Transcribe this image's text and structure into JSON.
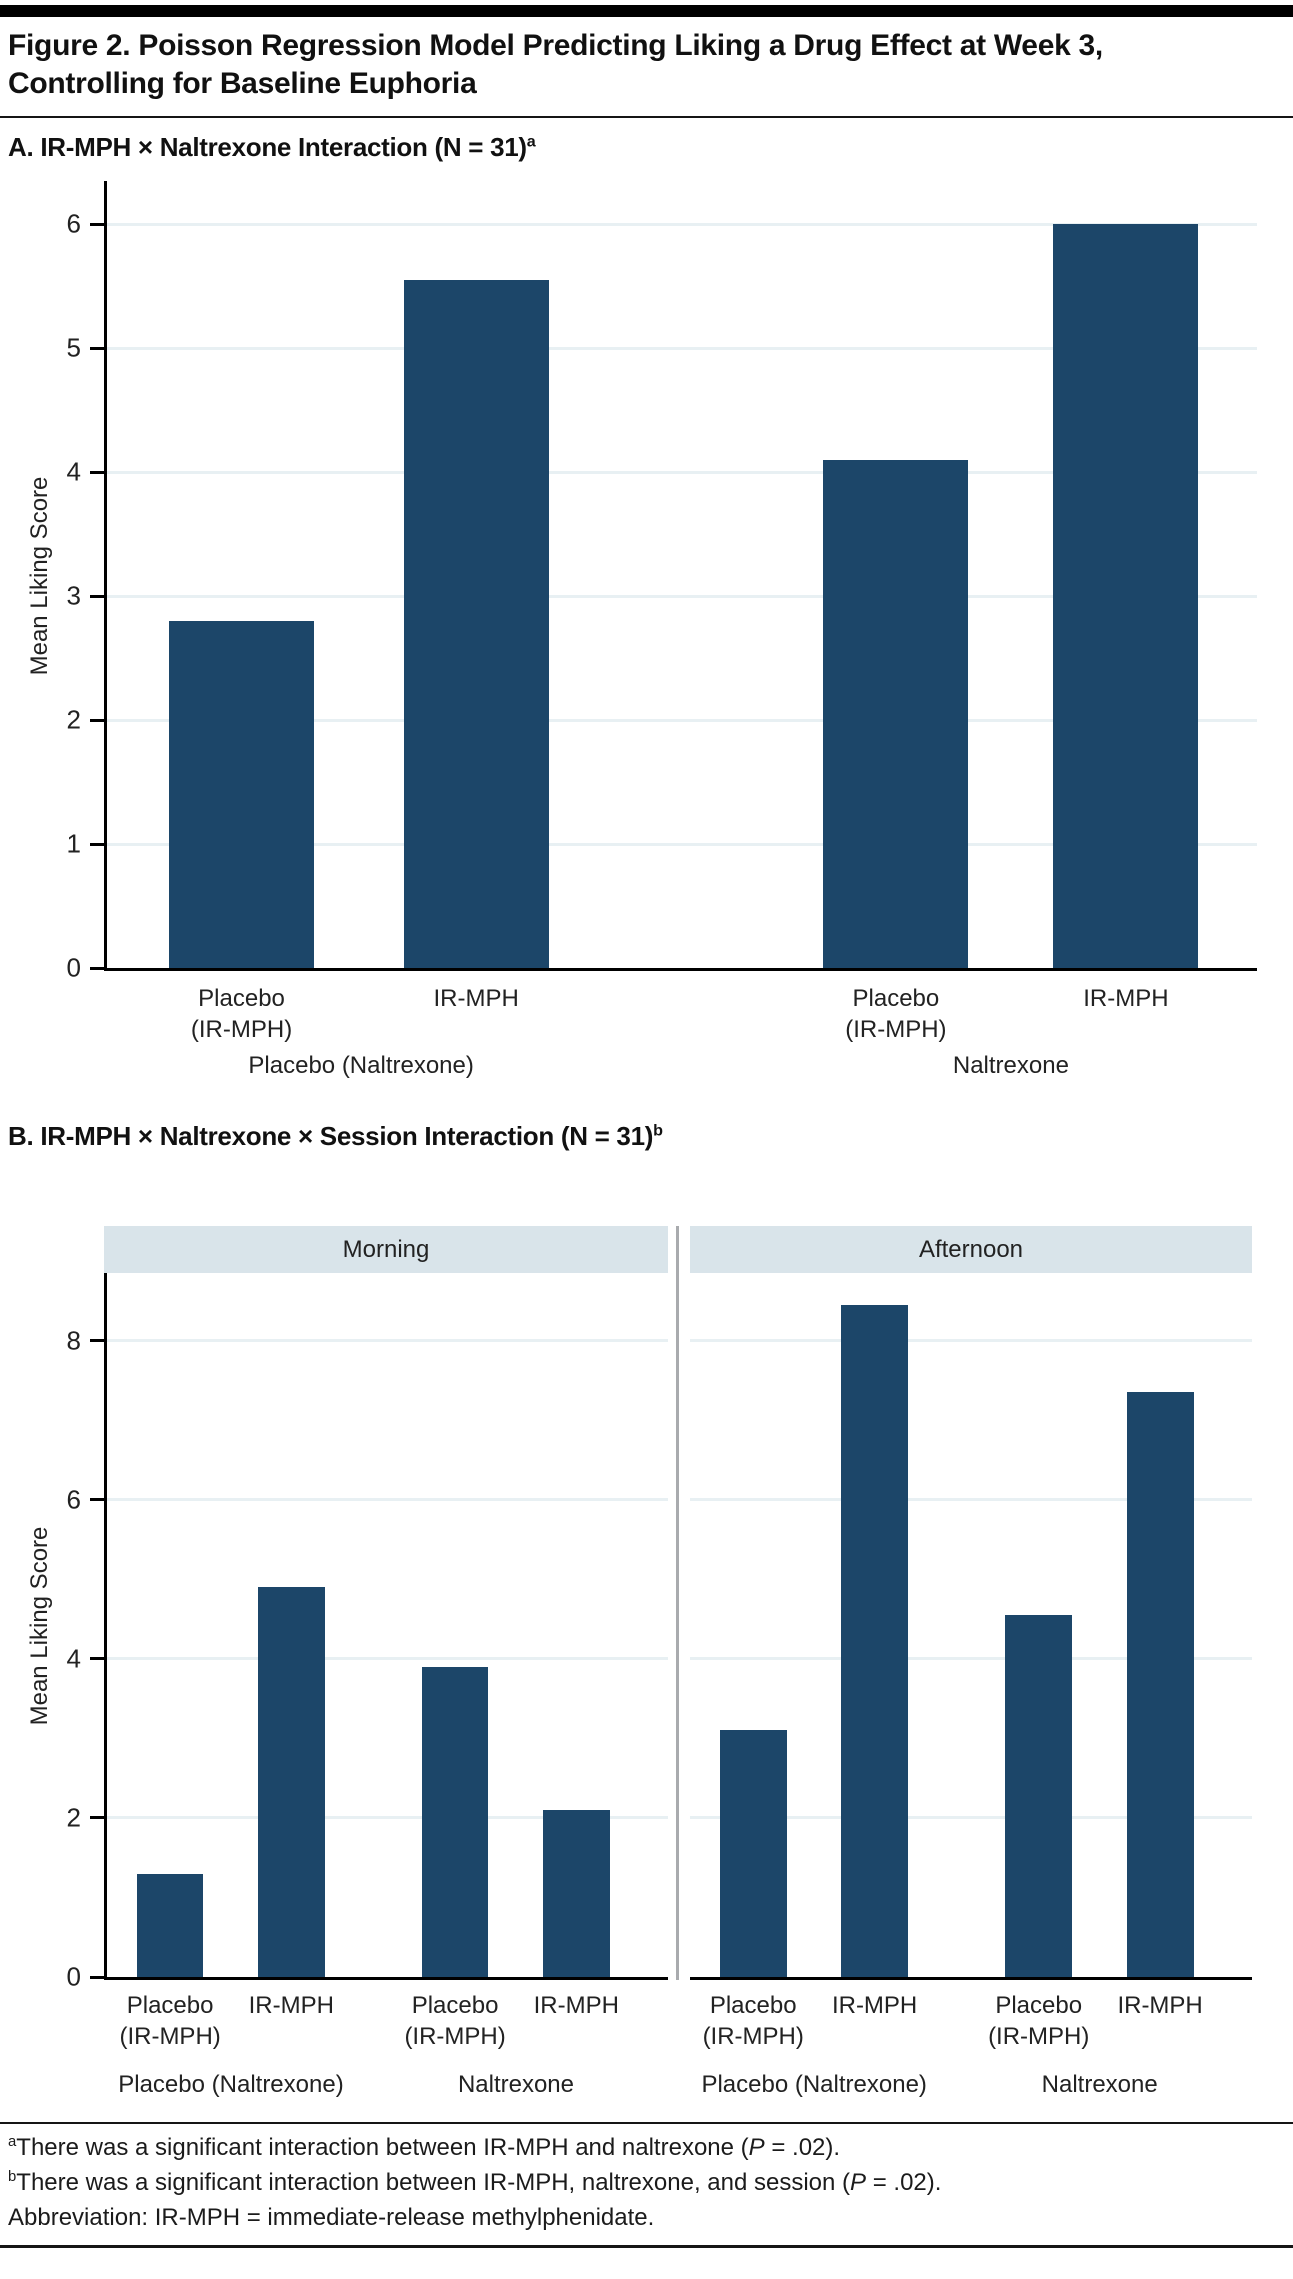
{
  "header": {
    "title_line1": "Figure 2. Poisson Regression Model Predicting Liking a Drug Effect at Week 3,",
    "title_line2": "Controlling for Baseline Euphoria"
  },
  "panelA": {
    "heading": "A. IR-MPH × Naltrexone Interaction (N = 31)",
    "heading_sup": "a",
    "ylabel": "Mean Liking Score"
  },
  "panelB": {
    "heading": "B. IR-MPH × Naltrexone × Session Interaction (N = 31)",
    "heading_sup": "b",
    "ylabel": "Mean Liking Score"
  },
  "footnotes": {
    "a": {
      "sup": "a",
      "pre": "There was a significant interaction between IR-MPH and naltrexone (",
      "pvar": "P",
      "post": " = .02)."
    },
    "b": {
      "sup": "b",
      "pre": "There was a significant interaction between IR-MPH, naltrexone, and session (",
      "pvar": "P",
      "post": " = .02)."
    },
    "abbrev": "Abbreviation: IR-MPH = immediate-release methylphenidate."
  },
  "colors": {
    "bar": "#1c4669",
    "gridline": "#e8f0f3",
    "strip": "#d9e4ea",
    "divider": "#a9abae"
  },
  "chart_data": [
    {
      "type": "bar",
      "panel": "A",
      "title": "A. IR-MPH × Naltrexone Interaction (N = 31)ᵃ",
      "ylabel": "Mean Liking Score",
      "ylim": [
        0,
        6.35
      ],
      "yticks": [
        0,
        1,
        2,
        3,
        4,
        5,
        6
      ],
      "grid": true,
      "bar_color": "#1c4669",
      "categories": [
        "Placebo (IR-MPH)",
        "IR-MPH",
        "Placebo (IR-MPH)",
        "IR-MPH"
      ],
      "category_label_lines": [
        [
          "Placebo",
          "(IR-MPH)"
        ],
        [
          "IR-MPH"
        ],
        [
          "Placebo",
          "(IR-MPH)"
        ],
        [
          "IR-MPH"
        ]
      ],
      "values": [
        2.8,
        5.55,
        4.1,
        6.0
      ],
      "group_labels": [
        "Placebo (Naltrexone)",
        "Naltrexone"
      ]
    },
    {
      "type": "bar",
      "panel": "B",
      "title": "B. IR-MPH × Naltrexone × Session Interaction (N = 31)ᵇ",
      "ylabel": "Mean Liking Score",
      "ylim": [
        0,
        8.85
      ],
      "yticks": [
        0,
        2,
        4,
        6,
        8
      ],
      "grid": true,
      "bar_color": "#1c4669",
      "facets": [
        {
          "label": "Morning",
          "categories": [
            "Placebo (IR-MPH)",
            "IR-MPH",
            "Placebo (IR-MPH)",
            "IR-MPH"
          ],
          "category_label_lines": [
            [
              "Placebo",
              "(IR-MPH)"
            ],
            [
              "IR-MPH"
            ],
            [
              "Placebo",
              "(IR-MPH)"
            ],
            [
              "IR-MPH"
            ]
          ],
          "values": [
            1.3,
            4.9,
            3.9,
            2.1
          ],
          "group_labels": [
            "Placebo (Naltrexone)",
            "Naltrexone"
          ]
        },
        {
          "label": "Afternoon",
          "categories": [
            "Placebo (IR-MPH)",
            "IR-MPH",
            "Placebo (IR-MPH)",
            "IR-MPH"
          ],
          "category_label_lines": [
            [
              "Placebo",
              "(IR-MPH)"
            ],
            [
              "IR-MPH"
            ],
            [
              "Placebo",
              "(IR-MPH)"
            ],
            [
              "IR-MPH"
            ]
          ],
          "values": [
            3.1,
            8.45,
            4.55,
            7.35
          ],
          "group_labels": [
            "Placebo (Naltrexone)",
            "Naltrexone"
          ]
        }
      ]
    }
  ]
}
